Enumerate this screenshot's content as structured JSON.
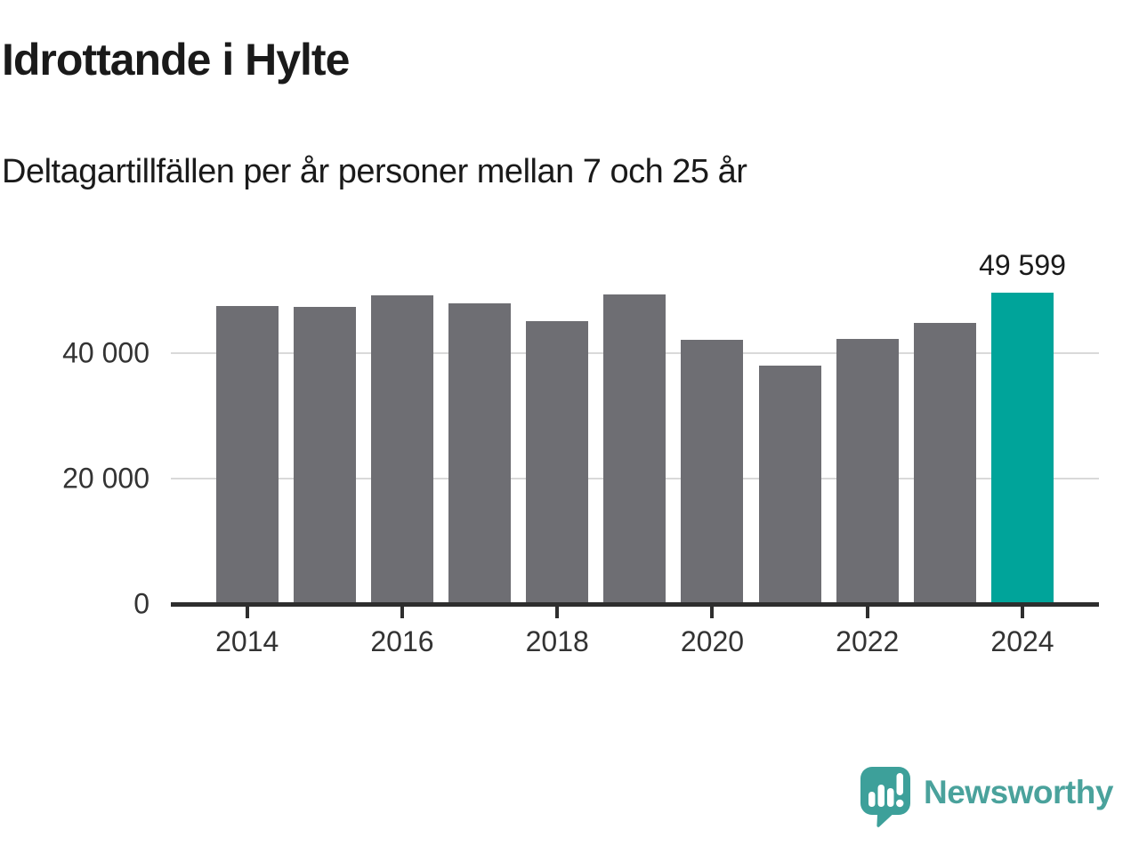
{
  "title": "Idrottande i Hylte",
  "subtitle": "Deltagartillfällen per år personer mellan 7 och 25 år",
  "chart_data": {
    "type": "bar",
    "categories": [
      2014,
      2015,
      2016,
      2017,
      2018,
      2019,
      2020,
      2021,
      2022,
      2023,
      2024
    ],
    "values": [
      47500,
      47400,
      49200,
      47900,
      45100,
      49300,
      42100,
      38000,
      42300,
      44800,
      49599
    ],
    "title": "Idrottande i Hylte",
    "subtitle": "Deltagartillfällen per år personer mellan 7 och 25 år",
    "xlabel": "",
    "ylabel": "",
    "ylim": [
      0,
      52000
    ],
    "yticks": [
      0,
      20000,
      40000
    ],
    "ytick_labels": [
      "0",
      "20 000",
      "40 000"
    ],
    "xtick_years": [
      2014,
      2016,
      2018,
      2020,
      2022,
      2024
    ],
    "grid": "horizontal",
    "legend": "none",
    "highlight_index": 10,
    "highlight_label": "49 599",
    "bar_color": "#6e6e73",
    "highlight_color": "#00a49a",
    "gridline_color": "#d9d9d9",
    "axis_color": "#2e2e2e",
    "tick_label_color": "#333333"
  },
  "branding": {
    "logo_text": "Newsworthy",
    "logo_icon": "speech-bubble-bar-chart-icon",
    "icon_color": "#3da09a",
    "text_color": "#4aa29c"
  }
}
